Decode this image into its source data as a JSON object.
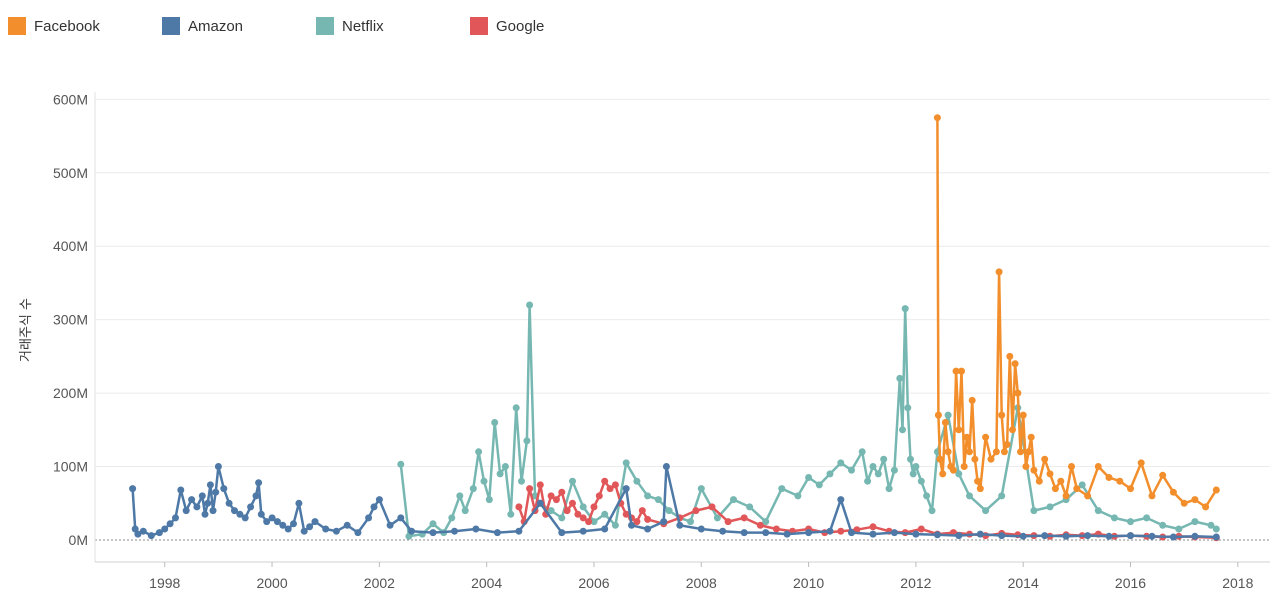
{
  "legend": {
    "items": [
      {
        "label": "Facebook",
        "color": "#f28e2b"
      },
      {
        "label": "Amazon",
        "color": "#4e79a7"
      },
      {
        "label": "Netflix",
        "color": "#76b7b2"
      },
      {
        "label": "Google",
        "color": "#e15759"
      }
    ]
  },
  "chart_data": {
    "type": "line",
    "title": "",
    "xlabel": "",
    "ylabel": "거래주식 수",
    "xlim": [
      1996.7,
      2018.6
    ],
    "ylim": [
      -30000000,
      610000000
    ],
    "x_ticks": [
      1998,
      2000,
      2002,
      2004,
      2006,
      2008,
      2010,
      2012,
      2014,
      2016,
      2018
    ],
    "x_tick_labels": [
      "1998",
      "2000",
      "2002",
      "2004",
      "2006",
      "2008",
      "2010",
      "2012",
      "2014",
      "2016",
      "2018"
    ],
    "y_ticks": [
      0,
      100000000,
      200000000,
      300000000,
      400000000,
      500000000,
      600000000
    ],
    "y_tick_labels": [
      "0M",
      "100M",
      "200M",
      "300M",
      "400M",
      "500M",
      "600M"
    ],
    "series": [
      {
        "name": "Netflix",
        "color": "#76b7b2",
        "x": [
          2002.4,
          2002.55,
          2002.8,
          2003.0,
          2003.2,
          2003.35,
          2003.5,
          2003.6,
          2003.75,
          2003.85,
          2003.95,
          2004.05,
          2004.15,
          2004.25,
          2004.35,
          2004.45,
          2004.55,
          2004.65,
          2004.75,
          2004.8,
          2004.9,
          2005.0,
          2005.2,
          2005.4,
          2005.6,
          2005.8,
          2006.0,
          2006.2,
          2006.4,
          2006.6,
          2006.8,
          2007.0,
          2007.2,
          2007.4,
          2007.6,
          2007.8,
          2008.0,
          2008.3,
          2008.6,
          2008.9,
          2009.2,
          2009.5,
          2009.8,
          2010.0,
          2010.2,
          2010.4,
          2010.6,
          2010.8,
          2011.0,
          2011.1,
          2011.2,
          2011.3,
          2011.4,
          2011.5,
          2011.6,
          2011.7,
          2011.75,
          2011.8,
          2011.85,
          2011.9,
          2011.95,
          2012.0,
          2012.1,
          2012.2,
          2012.3,
          2012.4,
          2012.6,
          2012.8,
          2013.0,
          2013.3,
          2013.6,
          2013.9,
          2014.2,
          2014.5,
          2014.8,
          2015.1,
          2015.4,
          2015.7,
          2016.0,
          2016.3,
          2016.6,
          2016.9,
          2017.2,
          2017.5,
          2017.6
        ],
        "values": [
          103000000,
          5000000,
          8000000,
          22000000,
          10000000,
          30000000,
          60000000,
          40000000,
          70000000,
          120000000,
          80000000,
          55000000,
          160000000,
          90000000,
          100000000,
          35000000,
          180000000,
          80000000,
          135000000,
          320000000,
          60000000,
          50000000,
          40000000,
          30000000,
          80000000,
          45000000,
          25000000,
          35000000,
          20000000,
          105000000,
          80000000,
          60000000,
          55000000,
          40000000,
          30000000,
          25000000,
          70000000,
          30000000,
          55000000,
          45000000,
          25000000,
          70000000,
          60000000,
          85000000,
          75000000,
          90000000,
          105000000,
          95000000,
          120000000,
          80000000,
          100000000,
          90000000,
          110000000,
          70000000,
          95000000,
          220000000,
          150000000,
          315000000,
          180000000,
          110000000,
          90000000,
          100000000,
          80000000,
          60000000,
          40000000,
          120000000,
          170000000,
          90000000,
          60000000,
          40000000,
          60000000,
          180000000,
          40000000,
          45000000,
          55000000,
          75000000,
          40000000,
          30000000,
          25000000,
          30000000,
          20000000,
          15000000,
          25000000,
          20000000,
          15000000
        ]
      },
      {
        "name": "Google",
        "color": "#e15759",
        "x": [
          2004.6,
          2004.7,
          2004.8,
          2004.9,
          2005.0,
          2005.1,
          2005.2,
          2005.3,
          2005.4,
          2005.5,
          2005.6,
          2005.7,
          2005.8,
          2005.9,
          2006.0,
          2006.1,
          2006.2,
          2006.3,
          2006.4,
          2006.5,
          2006.6,
          2006.7,
          2006.8,
          2006.9,
          2007.0,
          2007.3,
          2007.6,
          2007.9,
          2008.2,
          2008.5,
          2008.8,
          2009.1,
          2009.4,
          2009.7,
          2010.0,
          2010.3,
          2010.6,
          2010.9,
          2011.2,
          2011.5,
          2011.8,
          2012.1,
          2012.4,
          2012.7,
          2013.0,
          2013.3,
          2013.6,
          2013.9,
          2014.2,
          2014.5,
          2014.8,
          2015.1,
          2015.4,
          2015.7,
          2016.0,
          2016.3,
          2016.6,
          2016.9,
          2017.2,
          2017.6
        ],
        "values": [
          45000000,
          25000000,
          70000000,
          40000000,
          75000000,
          35000000,
          60000000,
          55000000,
          65000000,
          40000000,
          50000000,
          35000000,
          30000000,
          25000000,
          45000000,
          60000000,
          80000000,
          70000000,
          75000000,
          50000000,
          35000000,
          30000000,
          25000000,
          40000000,
          28000000,
          22000000,
          30000000,
          40000000,
          45000000,
          25000000,
          30000000,
          20000000,
          15000000,
          12000000,
          15000000,
          10000000,
          12000000,
          14000000,
          18000000,
          12000000,
          10000000,
          15000000,
          8000000,
          10000000,
          8000000,
          6000000,
          9000000,
          7000000,
          6000000,
          5000000,
          7000000,
          6000000,
          8000000,
          5000000,
          6000000,
          5000000,
          4000000,
          5000000,
          4000000,
          3000000
        ]
      },
      {
        "name": "Amazon",
        "color": "#4e79a7",
        "x": [
          1997.4,
          1997.45,
          1997.5,
          1997.6,
          1997.75,
          1997.9,
          1998.0,
          1998.1,
          1998.2,
          1998.3,
          1998.4,
          1998.5,
          1998.6,
          1998.7,
          1998.75,
          1998.8,
          1998.85,
          1998.9,
          1998.95,
          1999.0,
          1999.1,
          1999.2,
          1999.3,
          1999.4,
          1999.5,
          1999.6,
          1999.7,
          1999.75,
          1999.8,
          1999.9,
          2000.0,
          2000.1,
          2000.2,
          2000.3,
          2000.4,
          2000.5,
          2000.6,
          2000.7,
          2000.8,
          2001.0,
          2001.2,
          2001.4,
          2001.6,
          2001.8,
          2001.9,
          2002.0,
          2002.2,
          2002.4,
          2002.6,
          2003.0,
          2003.4,
          2003.8,
          2004.2,
          2004.6,
          2005.0,
          2005.4,
          2005.8,
          2006.2,
          2006.6,
          2006.7,
          2007.0,
          2007.3,
          2007.35,
          2007.6,
          2008.0,
          2008.4,
          2008.8,
          2009.2,
          2009.6,
          2010.0,
          2010.4,
          2010.6,
          2010.8,
          2011.2,
          2011.6,
          2012.0,
          2012.4,
          2012.8,
          2013.2,
          2013.6,
          2014.0,
          2014.4,
          2014.8,
          2015.2,
          2015.6,
          2016.0,
          2016.4,
          2016.8,
          2017.2,
          2017.6
        ],
        "values": [
          70000000,
          15000000,
          8000000,
          12000000,
          6000000,
          10000000,
          15000000,
          22000000,
          30000000,
          68000000,
          40000000,
          55000000,
          45000000,
          60000000,
          35000000,
          50000000,
          75000000,
          40000000,
          65000000,
          100000000,
          70000000,
          50000000,
          40000000,
          35000000,
          30000000,
          45000000,
          60000000,
          78000000,
          35000000,
          25000000,
          30000000,
          25000000,
          20000000,
          15000000,
          22000000,
          50000000,
          12000000,
          18000000,
          25000000,
          15000000,
          12000000,
          20000000,
          10000000,
          30000000,
          45000000,
          55000000,
          20000000,
          30000000,
          12000000,
          10000000,
          12000000,
          15000000,
          10000000,
          12000000,
          50000000,
          10000000,
          12000000,
          15000000,
          70000000,
          20000000,
          15000000,
          25000000,
          100000000,
          20000000,
          15000000,
          12000000,
          10000000,
          10000000,
          8000000,
          10000000,
          12000000,
          55000000,
          10000000,
          8000000,
          10000000,
          8000000,
          7000000,
          6000000,
          8000000,
          6000000,
          5000000,
          6000000,
          5000000,
          6000000,
          5000000,
          6000000,
          5000000,
          4000000,
          5000000,
          4000000
        ]
      },
      {
        "name": "Facebook",
        "color": "#f28e2b",
        "x": [
          2012.4,
          2012.42,
          2012.45,
          2012.5,
          2012.55,
          2012.6,
          2012.65,
          2012.7,
          2012.75,
          2012.8,
          2012.85,
          2012.9,
          2012.95,
          2013.0,
          2013.05,
          2013.1,
          2013.15,
          2013.2,
          2013.3,
          2013.4,
          2013.5,
          2013.55,
          2013.6,
          2013.65,
          2013.7,
          2013.75,
          2013.8,
          2013.85,
          2013.9,
          2013.95,
          2014.0,
          2014.05,
          2014.1,
          2014.15,
          2014.2,
          2014.3,
          2014.4,
          2014.5,
          2014.6,
          2014.7,
          2014.8,
          2014.9,
          2015.0,
          2015.2,
          2015.4,
          2015.6,
          2015.8,
          2016.0,
          2016.2,
          2016.4,
          2016.6,
          2016.8,
          2017.0,
          2017.2,
          2017.4,
          2017.6
        ],
        "values": [
          575000000,
          170000000,
          110000000,
          90000000,
          160000000,
          120000000,
          100000000,
          95000000,
          230000000,
          150000000,
          230000000,
          100000000,
          140000000,
          120000000,
          190000000,
          110000000,
          80000000,
          70000000,
          140000000,
          110000000,
          120000000,
          365000000,
          170000000,
          120000000,
          130000000,
          250000000,
          150000000,
          240000000,
          200000000,
          120000000,
          170000000,
          100000000,
          120000000,
          140000000,
          95000000,
          80000000,
          110000000,
          90000000,
          70000000,
          80000000,
          60000000,
          100000000,
          70000000,
          60000000,
          100000000,
          85000000,
          80000000,
          70000000,
          105000000,
          60000000,
          88000000,
          65000000,
          50000000,
          55000000,
          45000000,
          68000000
        ]
      }
    ]
  }
}
